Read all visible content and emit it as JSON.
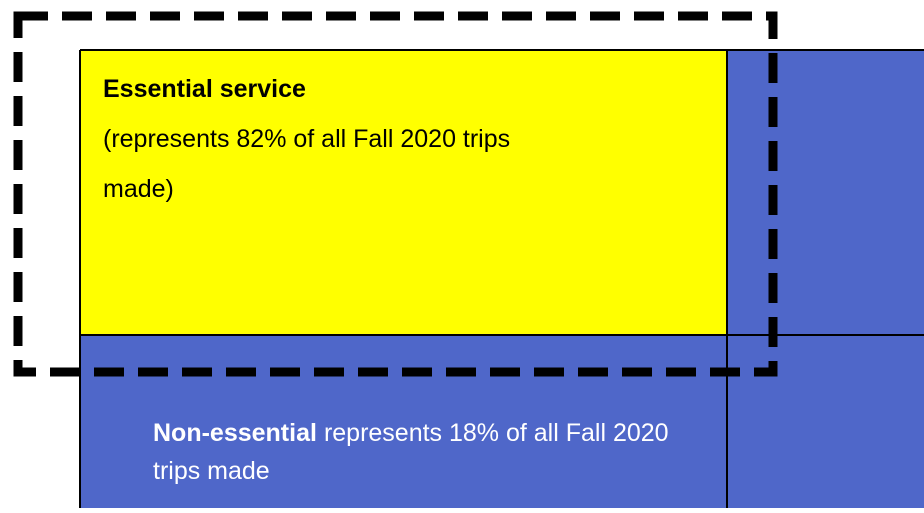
{
  "essential": {
    "title": "Essential service",
    "description_lines": [
      "(represents 82% of all Fall 2020 trips",
      "made)"
    ]
  },
  "non_essential": {
    "title": "Non-essential",
    "description_lines": [
      "represents 18% of all Fall 2020",
      "trips made"
    ]
  }
}
